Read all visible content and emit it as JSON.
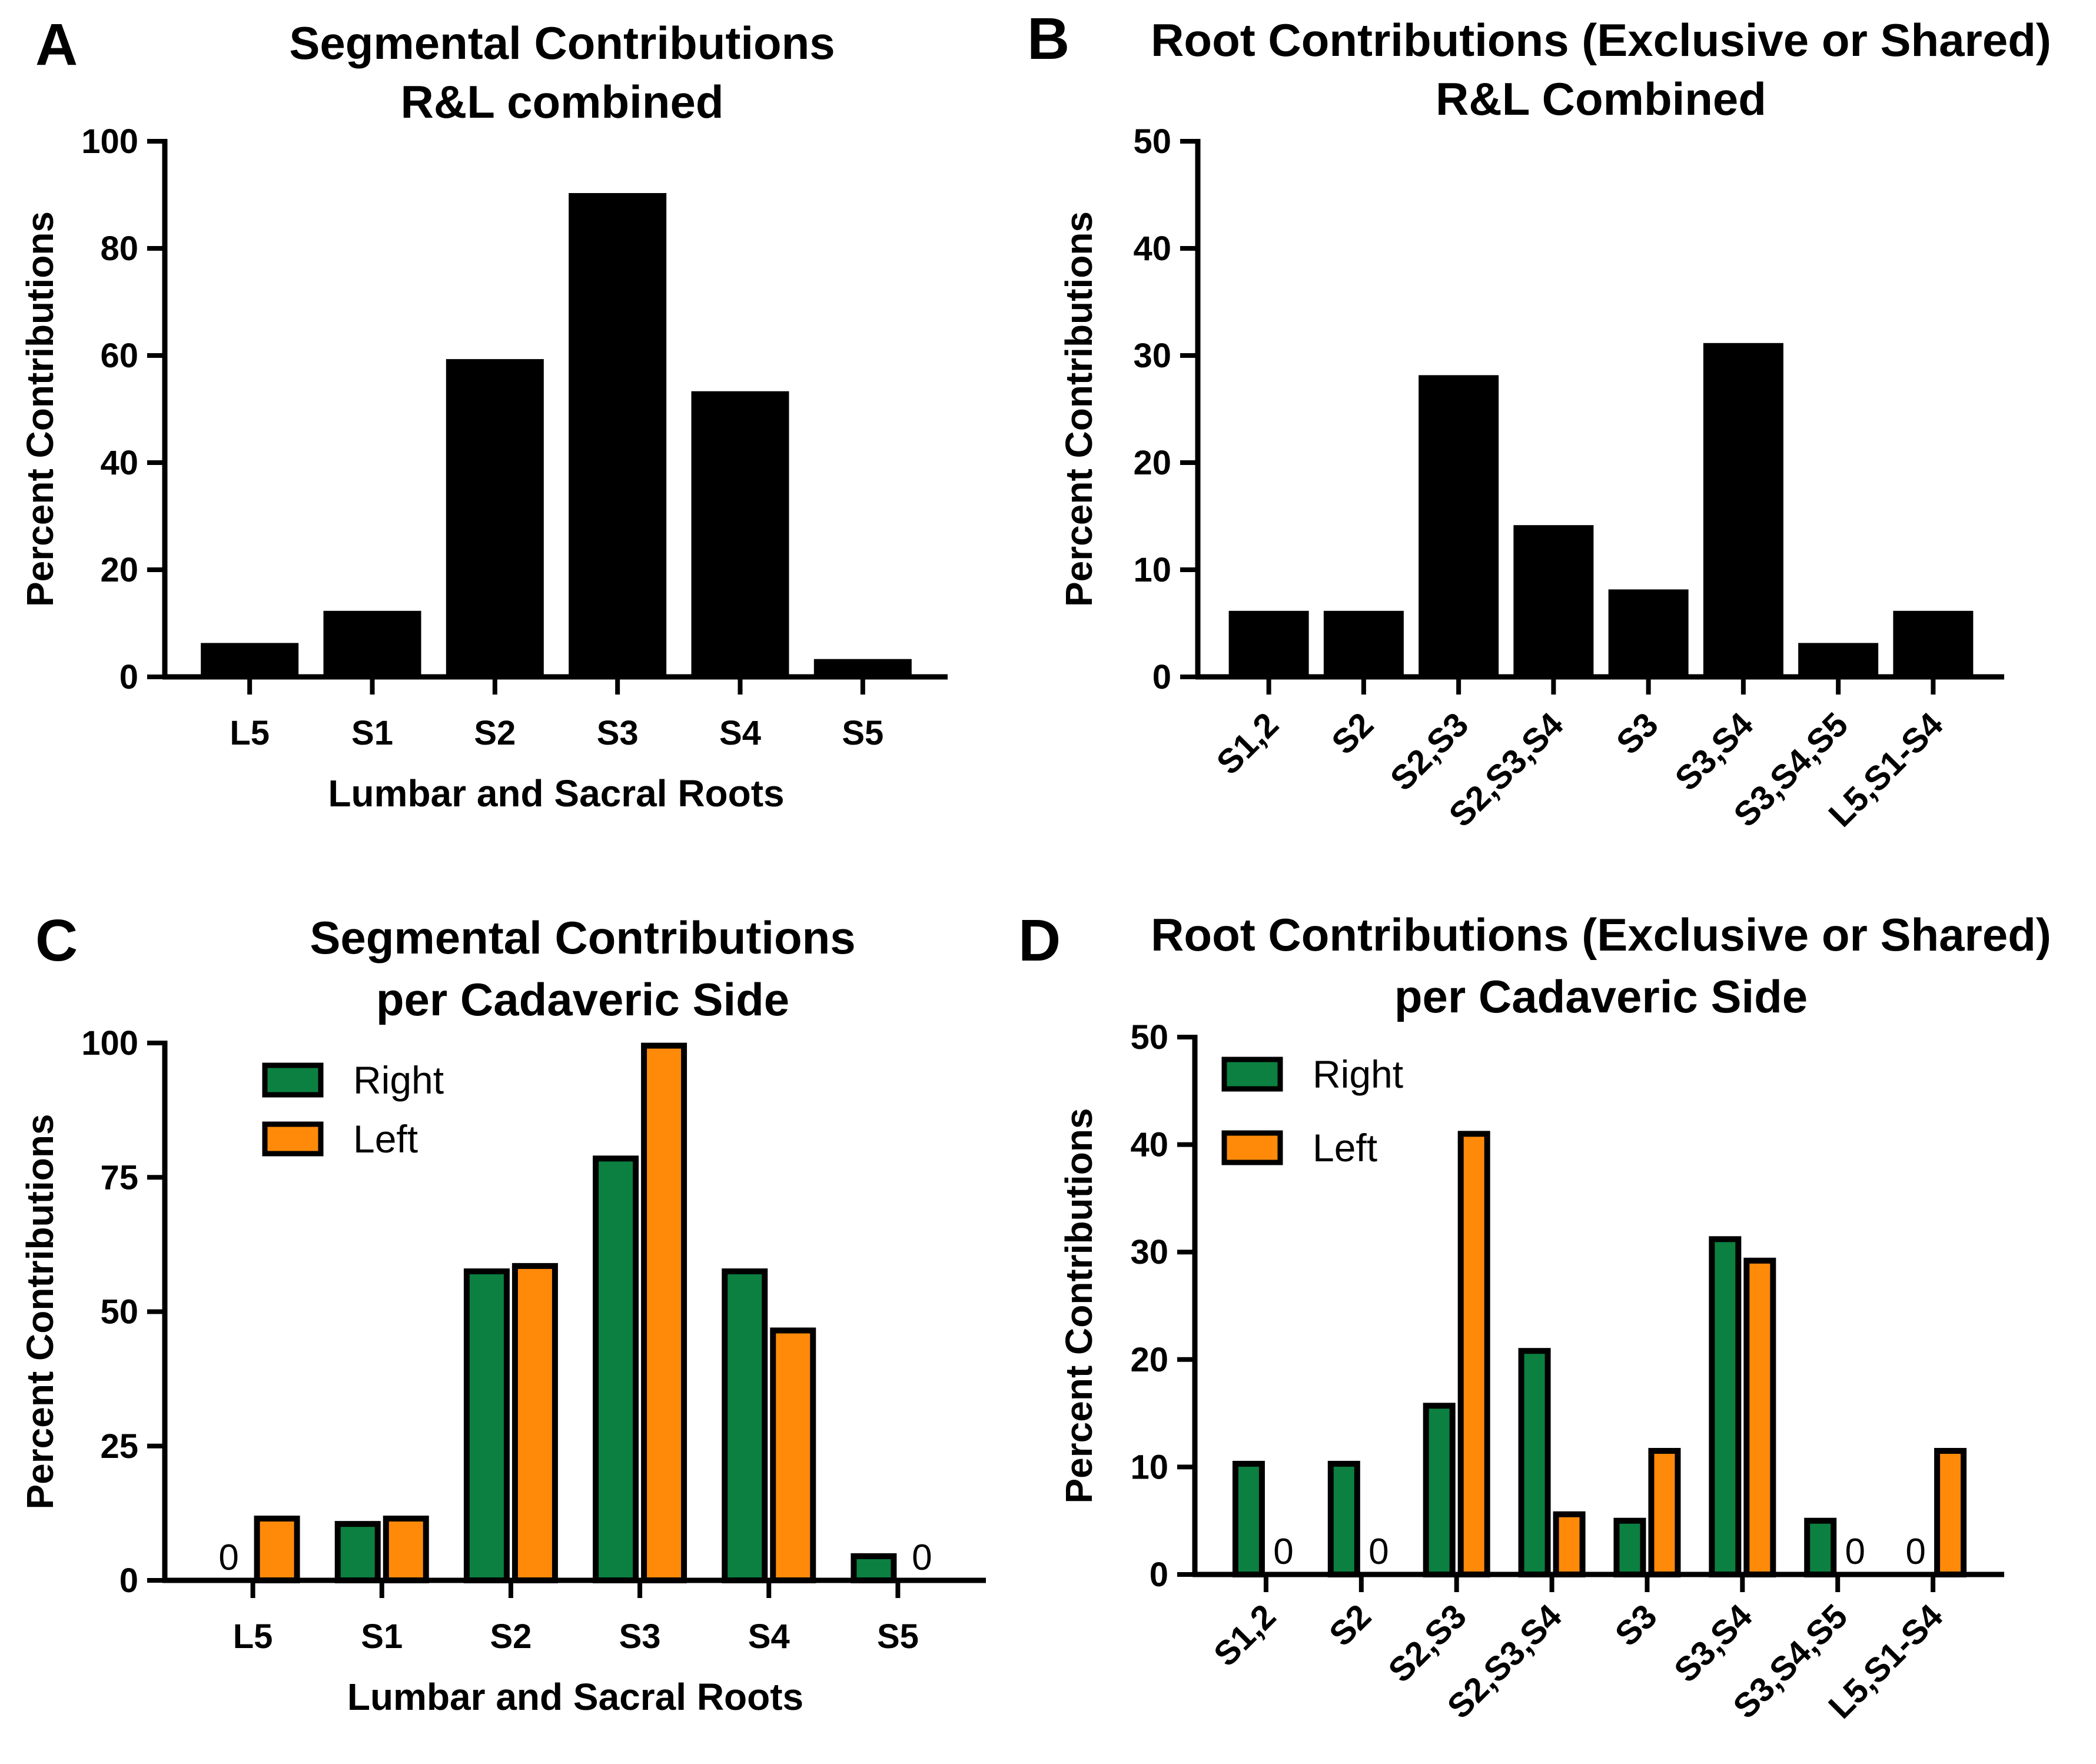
{
  "chart_data": [
    {
      "id": "A",
      "type": "bar",
      "panel_letter": "A",
      "title_lines": [
        "Segmental Contributions",
        "R&L combined"
      ],
      "xlabel": "Lumbar and Sacral  Roots",
      "ylabel": "Percent  Contributions",
      "ylim": [
        0,
        100
      ],
      "yticks": [
        0,
        20,
        40,
        60,
        80,
        100
      ],
      "categories": [
        "L5",
        "S1",
        "S2",
        "S3",
        "S4",
        "S5"
      ],
      "series": [
        {
          "name": "Combined",
          "color": "#000000",
          "values": [
            6,
            12,
            59,
            90,
            53,
            3
          ]
        }
      ],
      "category_label_style": "horizontal"
    },
    {
      "id": "B",
      "type": "bar",
      "panel_letter": "B",
      "title_lines": [
        "Root Contributions (Exclusive or Shared)",
        "R&L Combined"
      ],
      "xlabel": "",
      "ylabel": "Percent  Contributions",
      "ylim": [
        0,
        50
      ],
      "yticks": [
        0,
        10,
        20,
        30,
        40,
        50
      ],
      "categories": [
        "S1,2",
        "S2",
        "S2,S3",
        "S2,S3,S4",
        "S3",
        "S3,S4",
        "S3,S4,S5",
        "L5,S1-S4"
      ],
      "series": [
        {
          "name": "Combined",
          "color": "#000000",
          "values": [
            6,
            6,
            28,
            14,
            8,
            31,
            3,
            6
          ]
        }
      ],
      "category_label_style": "rotated"
    },
    {
      "id": "C",
      "type": "bar",
      "panel_letter": "C",
      "title_lines": [
        "Segmental Contributions",
        "per Cadaveric Side"
      ],
      "xlabel": "Lumbar and Sacral  Roots",
      "ylabel": "Percent  Contributions",
      "ylim": [
        0,
        100
      ],
      "yticks": [
        0,
        25,
        50,
        75,
        100
      ],
      "categories": [
        "L5",
        "S1",
        "S2",
        "S3",
        "S4",
        "S5"
      ],
      "series": [
        {
          "name": "Right",
          "color": "#0b8040",
          "values": [
            0,
            10.5,
            57.5,
            78.5,
            57.5,
            4.5
          ]
        },
        {
          "name": "Left",
          "color": "#ff8a0a",
          "values": [
            11.5,
            11.5,
            58.5,
            99.5,
            46.5,
            0
          ]
        }
      ],
      "zero_label": "0",
      "legend": "top-left",
      "category_label_style": "horizontal"
    },
    {
      "id": "D",
      "type": "bar",
      "panel_letter": "D",
      "title_lines": [
        "Root Contributions (Exclusive or Shared)",
        "per Cadaveric Side"
      ],
      "xlabel": "",
      "ylabel": "Percent  Contributions",
      "ylim": [
        0,
        50
      ],
      "yticks": [
        0,
        10,
        20,
        30,
        40,
        50
      ],
      "categories": [
        "S1,2",
        "S2",
        "S2,S3",
        "S2,S3,S4",
        "S3",
        "S3,S4",
        "S3,S4,S5",
        "L5,S1-S4"
      ],
      "series": [
        {
          "name": "Right",
          "color": "#0b8040",
          "values": [
            10.3,
            10.3,
            15.7,
            20.8,
            5,
            31.2,
            5,
            0
          ]
        },
        {
          "name": "Left",
          "color": "#ff8a0a",
          "values": [
            0,
            0,
            41,
            5.6,
            11.5,
            29.2,
            0,
            11.5
          ]
        }
      ],
      "zero_label": "0",
      "legend": "top-left",
      "category_label_style": "rotated"
    }
  ]
}
